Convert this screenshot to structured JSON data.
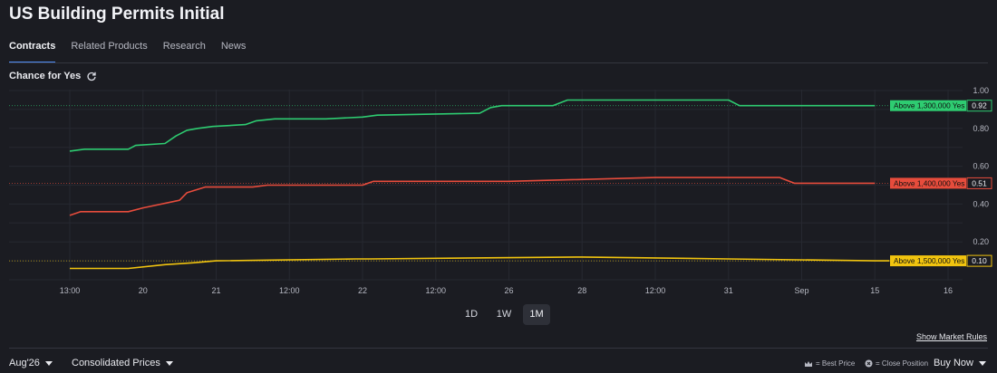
{
  "page": {
    "title": "US Building Permits Initial"
  },
  "tabs": [
    {
      "label": "Contracts",
      "active": true
    },
    {
      "label": "Related Products",
      "active": false
    },
    {
      "label": "Research",
      "active": false
    },
    {
      "label": "News",
      "active": false
    }
  ],
  "chart_section": {
    "title": "Chance for Yes",
    "refresh_icon": "refresh-icon"
  },
  "range_buttons": [
    {
      "label": "1D",
      "active": false
    },
    {
      "label": "1W",
      "active": false
    },
    {
      "label": "1M",
      "active": true
    }
  ],
  "footer": {
    "show_rules": "Show Market Rules",
    "month_select": "Aug'26",
    "price_select": "Consolidated Prices",
    "best_price": "= Best Price",
    "close_position": "= Close Position",
    "buy_now": "Buy Now"
  },
  "chart_data": {
    "type": "line",
    "title": "Chance for Yes",
    "x_ticks": [
      "13:00",
      "20",
      "21",
      "12:00",
      "22",
      "12:00",
      "26",
      "28",
      "12:00",
      "31",
      "Sep",
      "15",
      "16"
    ],
    "x_tick_positions": [
      0,
      1,
      2,
      3,
      4,
      5,
      6,
      7,
      8,
      9,
      10,
      11,
      12
    ],
    "y_ticks": [
      "0.20",
      "0.40",
      "0.60",
      "0.80",
      "1.00"
    ],
    "ylim": [
      0.0,
      1.0
    ],
    "xlim": [
      0,
      12
    ],
    "grid": true,
    "series": [
      {
        "name": "Above 1,300,000 Yes",
        "color": "#2ecc71",
        "last": "0.92",
        "points": [
          [
            0,
            0.68
          ],
          [
            0.2,
            0.69
          ],
          [
            0.8,
            0.69
          ],
          [
            0.9,
            0.71
          ],
          [
            1.3,
            0.72
          ],
          [
            1.45,
            0.76
          ],
          [
            1.6,
            0.79
          ],
          [
            1.75,
            0.8
          ],
          [
            1.95,
            0.81
          ],
          [
            2.4,
            0.82
          ],
          [
            2.55,
            0.84
          ],
          [
            2.8,
            0.85
          ],
          [
            3.5,
            0.85
          ],
          [
            4.0,
            0.86
          ],
          [
            4.2,
            0.87
          ],
          [
            5.6,
            0.88
          ],
          [
            5.75,
            0.91
          ],
          [
            5.9,
            0.92
          ],
          [
            6.6,
            0.92
          ],
          [
            6.8,
            0.95
          ],
          [
            9.0,
            0.95
          ],
          [
            9.15,
            0.92
          ],
          [
            11.0,
            0.92
          ]
        ]
      },
      {
        "name": "Above 1,400,000 Yes",
        "color": "#e74c3c",
        "last": "0.51",
        "points": [
          [
            0,
            0.34
          ],
          [
            0.15,
            0.36
          ],
          [
            0.8,
            0.36
          ],
          [
            1.0,
            0.38
          ],
          [
            1.5,
            0.42
          ],
          [
            1.6,
            0.46
          ],
          [
            1.85,
            0.49
          ],
          [
            2.5,
            0.49
          ],
          [
            2.7,
            0.5
          ],
          [
            4.0,
            0.5
          ],
          [
            4.15,
            0.52
          ],
          [
            6.0,
            0.52
          ],
          [
            8.0,
            0.54
          ],
          [
            9.7,
            0.54
          ],
          [
            9.9,
            0.51
          ],
          [
            11.0,
            0.51
          ]
        ]
      },
      {
        "name": "Above 1,500,000 Yes",
        "color": "#f1c40f",
        "last": "0.10",
        "points": [
          [
            0,
            0.06
          ],
          [
            0.8,
            0.06
          ],
          [
            1.3,
            0.08
          ],
          [
            1.7,
            0.09
          ],
          [
            2.0,
            0.1
          ],
          [
            3.9,
            0.11
          ],
          [
            4.1,
            0.11
          ],
          [
            7.0,
            0.12
          ],
          [
            9.0,
            0.11
          ],
          [
            11.0,
            0.1
          ],
          [
            11.2,
            0.1
          ]
        ]
      }
    ],
    "label_colors": {
      "value_bg": "#1b1c22",
      "value_text": "#f2f3f7"
    }
  }
}
